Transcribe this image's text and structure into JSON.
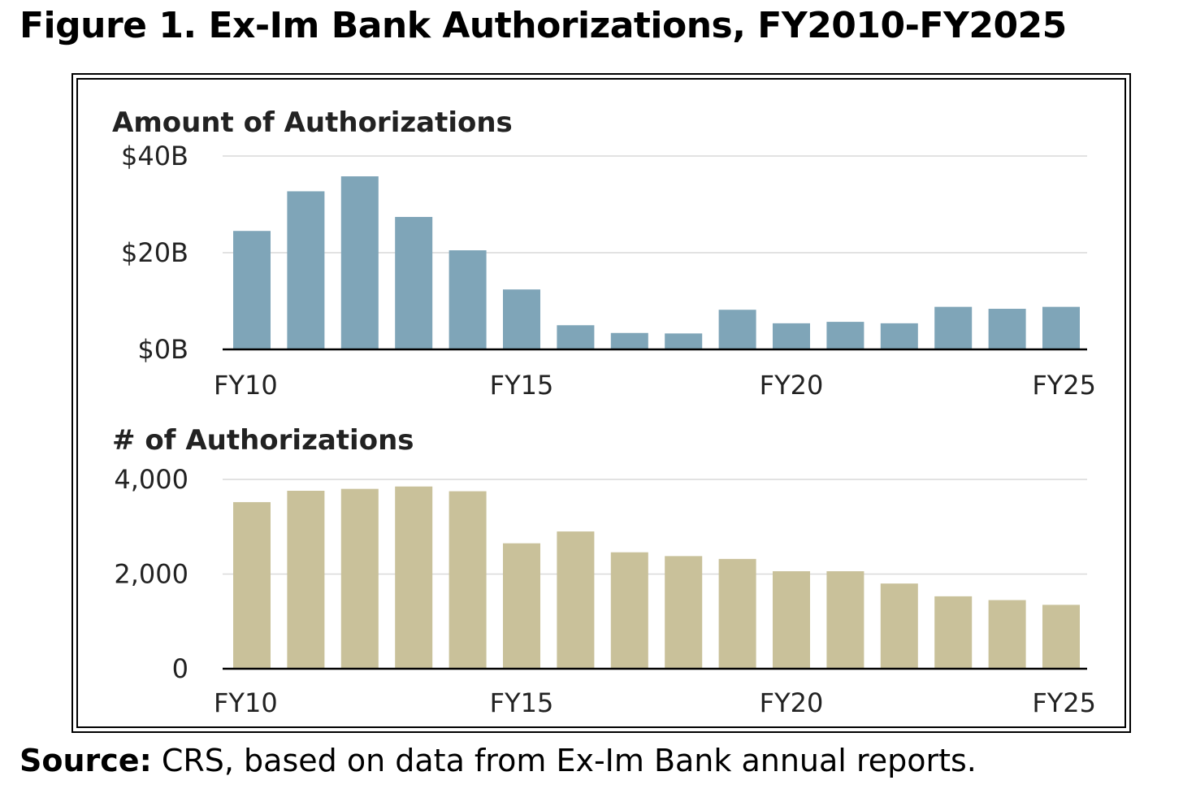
{
  "figure": {
    "title": "Figure 1. Ex-Im Bank Authorizations, FY2010-FY2025",
    "source_label": "Source:",
    "source_text": " CRS, based on data from Ex-Im Bank annual reports."
  },
  "chart_data": [
    {
      "type": "bar",
      "title": "Amount of Authorizations",
      "categories": [
        "FY10",
        "FY11",
        "FY12",
        "FY13",
        "FY14",
        "FY15",
        "FY16",
        "FY17",
        "FY18",
        "FY19",
        "FY20",
        "FY21",
        "FY22",
        "FY23",
        "FY24",
        "FY25"
      ],
      "x_tick_labels": [
        "FY10",
        "FY15",
        "FY20",
        "FY25"
      ],
      "values": [
        24.5,
        32.7,
        35.8,
        27.4,
        20.5,
        12.4,
        5.0,
        3.4,
        3.3,
        8.2,
        5.4,
        5.7,
        5.4,
        8.8,
        8.4,
        8.8
      ],
      "ylim": [
        0,
        40
      ],
      "y_ticks": [
        0,
        20,
        40
      ],
      "y_tick_labels": [
        "$0B",
        "$20B",
        "$40B"
      ],
      "color": "#7fa5b8",
      "grid": true
    },
    {
      "type": "bar",
      "title": "# of Authorizations",
      "categories": [
        "FY10",
        "FY11",
        "FY12",
        "FY13",
        "FY14",
        "FY15",
        "FY16",
        "FY17",
        "FY18",
        "FY19",
        "FY20",
        "FY21",
        "FY22",
        "FY23",
        "FY24",
        "FY25"
      ],
      "x_tick_labels": [
        "FY10",
        "FY15",
        "FY20",
        "FY25"
      ],
      "values": [
        3520,
        3760,
        3800,
        3850,
        3750,
        2650,
        2900,
        2460,
        2380,
        2320,
        2060,
        2060,
        1800,
        1530,
        1450,
        1350
      ],
      "ylim": [
        0,
        4000
      ],
      "y_ticks": [
        0,
        2000,
        4000
      ],
      "y_tick_labels": [
        "0",
        "2,000",
        "4,000"
      ],
      "color": "#c9c19a",
      "grid": true
    }
  ]
}
